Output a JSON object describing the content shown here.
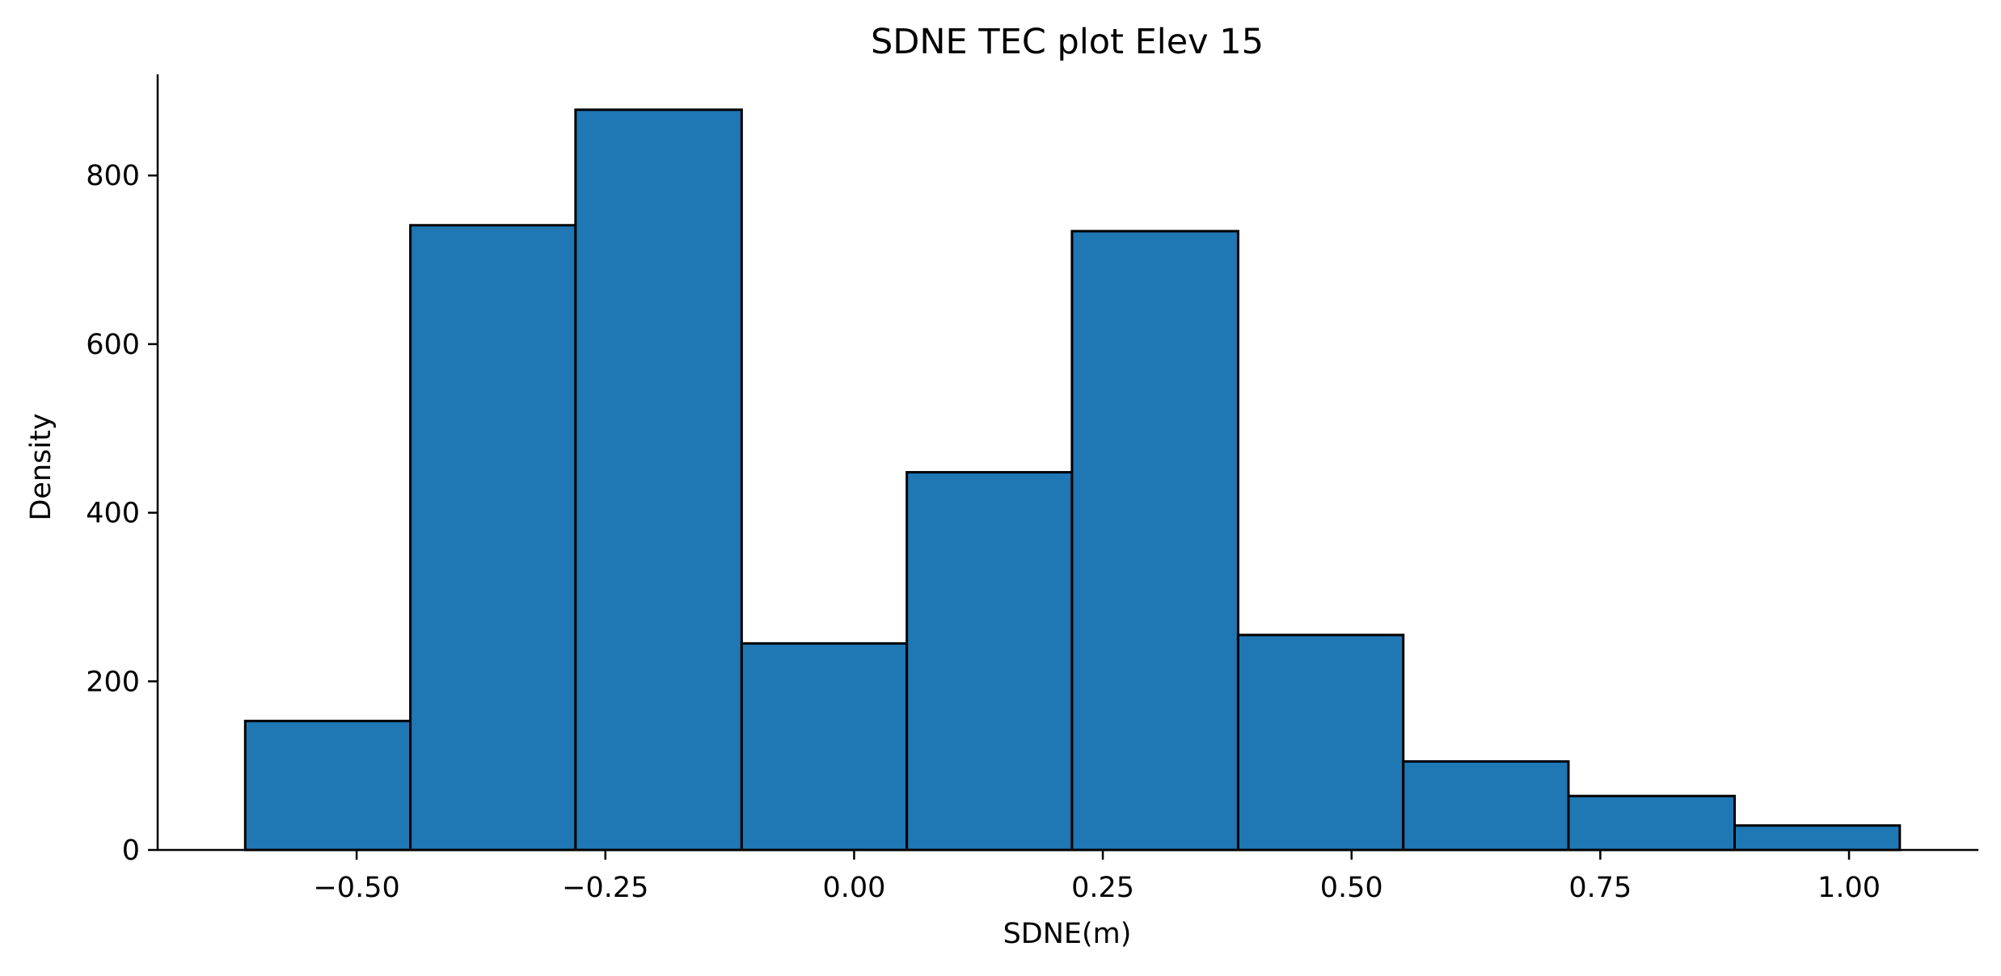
{
  "chart_data": {
    "type": "bar",
    "title": "SDNE TEC plot Elev 15",
    "xlabel": "SDNE(m)",
    "ylabel": "Density",
    "bin_edges": [
      -0.612,
      -0.446,
      -0.28,
      -0.113,
      0.053,
      0.219,
      0.386,
      0.552,
      0.718,
      0.885,
      1.051
    ],
    "values": [
      153,
      741,
      878,
      245,
      448,
      734,
      255,
      105,
      64,
      29
    ],
    "xlim": [
      -0.7,
      1.13
    ],
    "ylim": [
      0,
      920
    ],
    "x_ticks": [
      -0.5,
      -0.25,
      0.0,
      0.25,
      0.5,
      0.75,
      1.0
    ],
    "x_tick_labels": [
      "−0.50",
      "−0.25",
      "0.00",
      "0.25",
      "0.50",
      "0.75",
      "1.00"
    ],
    "y_ticks": [
      0,
      200,
      400,
      600,
      800
    ],
    "y_tick_labels": [
      "0",
      "200",
      "400",
      "600",
      "800"
    ],
    "bar_color": "#1f77b4",
    "edge_color": "#000000",
    "grid": false,
    "legend": "none"
  }
}
